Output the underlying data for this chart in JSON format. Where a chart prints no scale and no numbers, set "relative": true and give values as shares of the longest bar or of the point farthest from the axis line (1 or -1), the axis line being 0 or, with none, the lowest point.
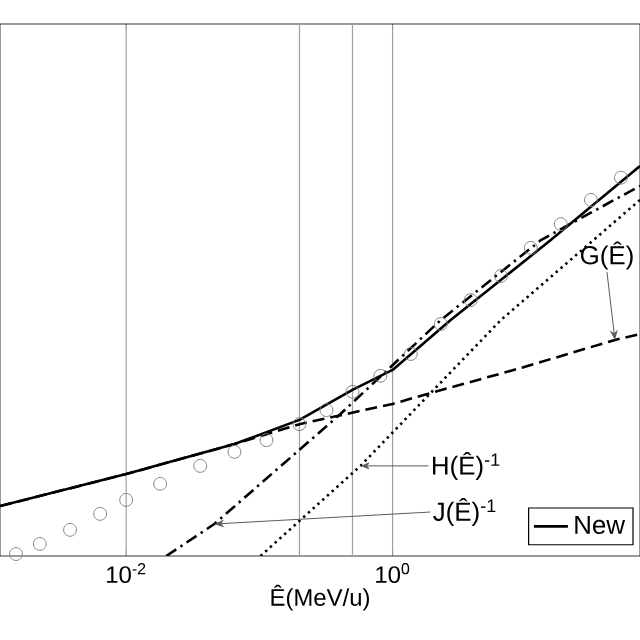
{
  "chart_data": {
    "type": "line",
    "relative": true,
    "xlabel": "Ê(MeV/u)",
    "log": "x",
    "xlim": [
      0.00113,
      72
    ],
    "xticks": [
      {
        "value": 0.01,
        "label": "10$^{-2}$"
      },
      {
        "value": 1,
        "label": "10$^{0}$"
      }
    ],
    "grid": "x",
    "legend": "bottom right",
    "series": [
      {
        "type": "scatter",
        "marker": "circle",
        "color": "#808080",
        "x": [
          0.00149,
          0.00225,
          0.00379,
          0.00638,
          0.01,
          0.018,
          0.036,
          0.065,
          0.113,
          0.2,
          0.319,
          0.5,
          0.81,
          1.37,
          2.3,
          3.86,
          6.5,
          10.9,
          18.3,
          30.8,
          51.8
        ],
        "values": [
          0.005,
          0.031,
          0.067,
          0.108,
          0.144,
          0.185,
          0.231,
          0.267,
          0.297,
          0.338,
          0.374,
          0.421,
          0.462,
          0.518,
          0.595,
          0.656,
          0.718,
          0.79,
          0.851,
          0.913,
          0.97
        ]
      },
      {
        "name": "New",
        "line_style": "solid",
        "color": "#000000",
        "x": [
          0.00113,
          0.01,
          0.065,
          0.2,
          0.5,
          1,
          2.73,
          15.4,
          72
        ],
        "values": [
          0.128,
          0.21,
          0.287,
          0.349,
          0.426,
          0.477,
          0.605,
          0.81,
          1
        ]
      },
      {
        "line_style": "dashed",
        "color": "#000000",
        "x": [
          0.00113,
          0.01,
          0.065,
          0.2,
          1,
          1.8,
          9.17,
          46.7,
          72
        ],
        "values": [
          0.128,
          0.21,
          0.287,
          0.338,
          0.39,
          0.415,
          0.482,
          0.554,
          0.569
        ]
      },
      {
        "line_style": "dotted",
        "color": "#000000",
        "x": [
          0.102,
          0.574,
          6.5,
          72
        ],
        "values": [
          0,
          0.231,
          0.605,
          0.913
        ]
      },
      {
        "line_style": "dashdot",
        "color": "#000000",
        "x": [
          0.02,
          0.0459,
          0.406,
          2.3,
          13,
          72
        ],
        "values": [
          0,
          0.082,
          0.364,
          0.605,
          0.81,
          0.949
        ]
      }
    ],
    "ref_lines": [
      {
        "axis": "x",
        "value": 0.2,
        "color": "#a0a0a0"
      },
      {
        "axis": "x",
        "value": 0.5,
        "color": "#a0a0a0"
      }
    ],
    "annotations": [
      {
        "text": "G(Ê)",
        "x": 46.7,
        "y": 0.554
      },
      {
        "text": "H(Ê)$^{-1}$",
        "x": 0.574,
        "y": 0.231
      },
      {
        "text": "J(Ê)$^{-1}$",
        "x": 0.0459,
        "y": 0.082
      }
    ]
  }
}
